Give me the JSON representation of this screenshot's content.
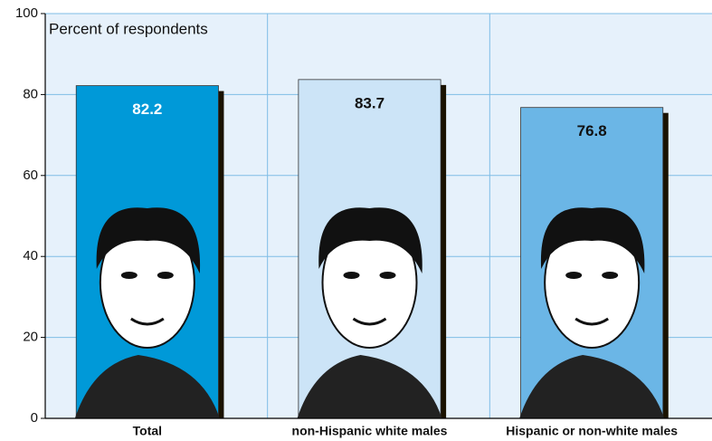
{
  "chart_data": {
    "type": "bar",
    "y_label": "Percent of respondents",
    "categories": [
      "Total",
      "non-Hispanic white males",
      "Hispanic or non-white males"
    ],
    "values": [
      82.2,
      83.7,
      76.8
    ],
    "colors": [
      "#0099d8",
      "#cce4f7",
      "#6bb6e6"
    ],
    "ylim": [
      0,
      100
    ],
    "yticks": [
      0,
      20,
      40,
      60,
      80,
      100
    ],
    "grid": true
  }
}
